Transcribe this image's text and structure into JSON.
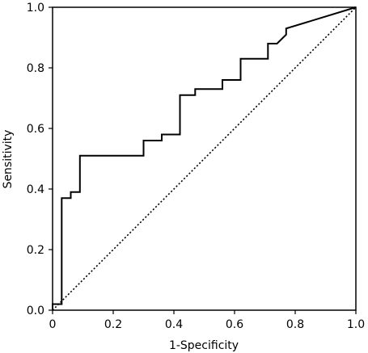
{
  "chart_data": {
    "type": "line",
    "xlabel": "1-Specificity",
    "ylabel": "Sensitivity",
    "xlim": [
      0,
      1
    ],
    "ylim": [
      0,
      1
    ],
    "x_ticks": [
      "0",
      "0.2",
      "0.4",
      "0.6",
      "0.8",
      "1.0"
    ],
    "y_ticks": [
      "0.0",
      "0.2",
      "0.4",
      "0.6",
      "0.8",
      "1.0"
    ],
    "x_tick_values": [
      0,
      0.2,
      0.4,
      0.6,
      0.8,
      1.0
    ],
    "y_tick_values": [
      0,
      0.2,
      0.4,
      0.6,
      0.8,
      1.0
    ],
    "grid": false,
    "series": [
      {
        "style": "solid",
        "x": [
          0,
          0,
          0.03,
          0.03,
          0.06,
          0.06,
          0.09,
          0.09,
          0.3,
          0.3,
          0.36,
          0.36,
          0.42,
          0.42,
          0.47,
          0.47,
          0.56,
          0.56,
          0.62,
          0.62,
          0.71,
          0.71,
          0.74,
          0.77,
          0.77,
          1.0
        ],
        "y": [
          0,
          0.02,
          0.02,
          0.37,
          0.37,
          0.39,
          0.39,
          0.51,
          0.51,
          0.56,
          0.56,
          0.58,
          0.58,
          0.71,
          0.71,
          0.73,
          0.73,
          0.76,
          0.76,
          0.83,
          0.83,
          0.88,
          0.88,
          0.91,
          0.93,
          1.0
        ]
      },
      {
        "style": "dotted",
        "x": [
          0,
          1
        ],
        "y": [
          0,
          1
        ]
      }
    ]
  }
}
